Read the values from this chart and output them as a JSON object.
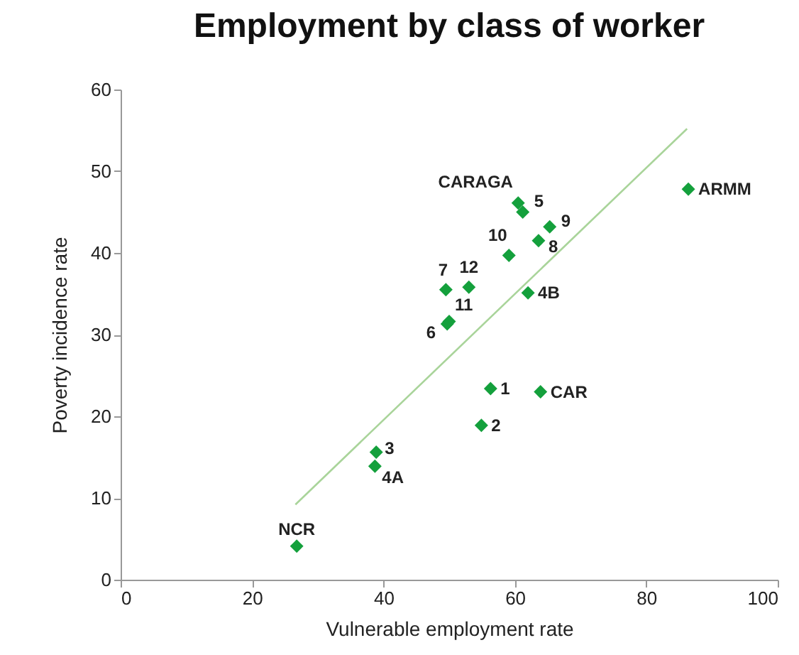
{
  "chart_data": {
    "type": "scatter",
    "title": "Employment by class of worker",
    "xlabel": "Vulnerable employment rate",
    "ylabel": "Poverty incidence rate",
    "xlim": [
      0,
      100
    ],
    "xticks": [
      0,
      20,
      40,
      60,
      80,
      100
    ],
    "ylim": [
      0,
      60
    ],
    "yticks": [
      0,
      10,
      20,
      30,
      40,
      50,
      60
    ],
    "grid": false,
    "series": [
      {
        "marker": "diamond",
        "color": "#14a03c",
        "x": [
          26.8,
          38.7,
          38.9,
          54.9,
          56.3,
          63.9,
          49.7,
          50.0,
          49.5,
          53.0,
          62.0,
          59.1,
          63.6,
          65.3,
          61.2,
          60.5,
          86.4
        ],
        "values": [
          4.1,
          13.9,
          15.6,
          18.9,
          23.4,
          23.0,
          31.3,
          31.6,
          35.5,
          35.8,
          35.1,
          39.7,
          41.5,
          43.2,
          45.0,
          46.1,
          47.8
        ]
      },
      {
        "type": "line",
        "color": "#a9d49a",
        "x": [
          26.6,
          86.2
        ],
        "values": [
          9.2,
          55.2
        ]
      }
    ],
    "annotations": [
      {
        "text": "NCR",
        "x": 26.8,
        "y": 4.1
      },
      {
        "text": "4A",
        "x": 38.7,
        "y": 13.9
      },
      {
        "text": "3",
        "x": 38.9,
        "y": 15.6
      },
      {
        "text": "2",
        "x": 54.9,
        "y": 18.9
      },
      {
        "text": "1",
        "x": 56.3,
        "y": 23.4
      },
      {
        "text": "CAR",
        "x": 63.9,
        "y": 23.0
      },
      {
        "text": "6",
        "x": 49.7,
        "y": 31.3
      },
      {
        "text": "11",
        "x": 50.0,
        "y": 31.6
      },
      {
        "text": "7",
        "x": 49.5,
        "y": 35.5
      },
      {
        "text": "12",
        "x": 53.0,
        "y": 35.8
      },
      {
        "text": "4B",
        "x": 62.0,
        "y": 35.1
      },
      {
        "text": "10",
        "x": 59.1,
        "y": 39.7
      },
      {
        "text": "8",
        "x": 63.6,
        "y": 41.5
      },
      {
        "text": "9",
        "x": 65.3,
        "y": 43.2
      },
      {
        "text": "5",
        "x": 61.2,
        "y": 45.0
      },
      {
        "text": "CARAGA",
        "x": 60.5,
        "y": 46.1
      },
      {
        "text": "ARMM",
        "x": 86.4,
        "y": 47.8
      }
    ]
  }
}
